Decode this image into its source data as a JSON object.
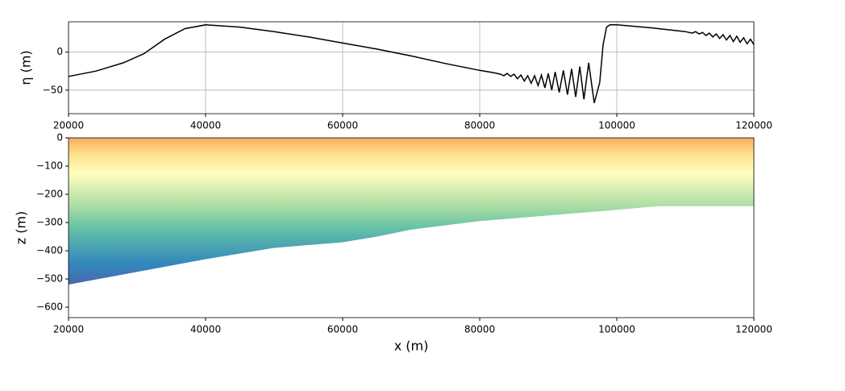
{
  "chart_data": [
    {
      "type": "line",
      "ylabel": "η (m)",
      "color": "#000000",
      "grid": true,
      "x": [
        20000,
        24000,
        28000,
        31000,
        34000,
        37000,
        40000,
        45000,
        50000,
        55000,
        60000,
        65000,
        70000,
        75000,
        80000,
        82000,
        83000,
        83500,
        84000,
        84500,
        85000,
        85500,
        86000,
        86500,
        87000,
        87500,
        88000,
        88500,
        89000,
        89500,
        90000,
        90500,
        91000,
        91600,
        92200,
        92800,
        93400,
        94000,
        94600,
        95200,
        95900,
        96700,
        97500,
        98000,
        98500,
        99000,
        100000,
        105000,
        110000,
        111000,
        111500,
        112000,
        112500,
        113000,
        113500,
        114000,
        114500,
        115000,
        115500,
        116000,
        116500,
        117000,
        117500,
        118000,
        118500,
        119000,
        119500,
        120000
      ],
      "values": [
        -32,
        -25,
        -14,
        -2,
        17,
        31,
        36,
        33,
        27,
        20,
        12,
        4,
        -5,
        -15,
        -24,
        -27,
        -29,
        -31,
        -28,
        -32,
        -29,
        -35,
        -30,
        -38,
        -31,
        -41,
        -31,
        -44,
        -30,
        -47,
        -28,
        -50,
        -26,
        -53,
        -24,
        -56,
        -22,
        -59,
        -19,
        -62,
        -14,
        -67,
        -40,
        10,
        33,
        36,
        36,
        32,
        27,
        25,
        27,
        24,
        26,
        22,
        25,
        20,
        24,
        18,
        23,
        16,
        22,
        14,
        21,
        13,
        19,
        11,
        17,
        10
      ],
      "xlim": [
        20000,
        120000
      ],
      "ylim": [
        -81,
        40
      ],
      "xticks": [
        20000,
        40000,
        60000,
        80000,
        100000,
        120000
      ],
      "yticks": [
        {
          "value": -50,
          "label": "−50"
        },
        0
      ]
    },
    {
      "type": "area",
      "xlabel": "x (m)",
      "ylabel": "z (m)",
      "colors": [
        "#fdae61",
        "#fee08b",
        "#ffffbf",
        "#abdda4",
        "#66c2a5",
        "#3288bd",
        "#5e4fa2"
      ],
      "x": [
        20000,
        30000,
        40000,
        50000,
        60000,
        65000,
        70000,
        80000,
        90000,
        100000,
        106000,
        120000
      ],
      "values": [
        -520,
        -475,
        -430,
        -390,
        -370,
        -350,
        -325,
        -295,
        -275,
        -255,
        -242,
        -242
      ],
      "xlim": [
        20000,
        120000
      ],
      "ylim": [
        -637,
        0
      ],
      "xticks": [
        20000,
        40000,
        60000,
        80000,
        100000,
        120000
      ],
      "yticks": [
        {
          "value": -600,
          "label": "−600"
        },
        {
          "value": -500,
          "label": "−500"
        },
        {
          "value": -400,
          "label": "−400"
        },
        {
          "value": -300,
          "label": "−300"
        },
        {
          "value": -200,
          "label": "−200"
        },
        {
          "value": -100,
          "label": "−100"
        },
        0
      ]
    }
  ]
}
